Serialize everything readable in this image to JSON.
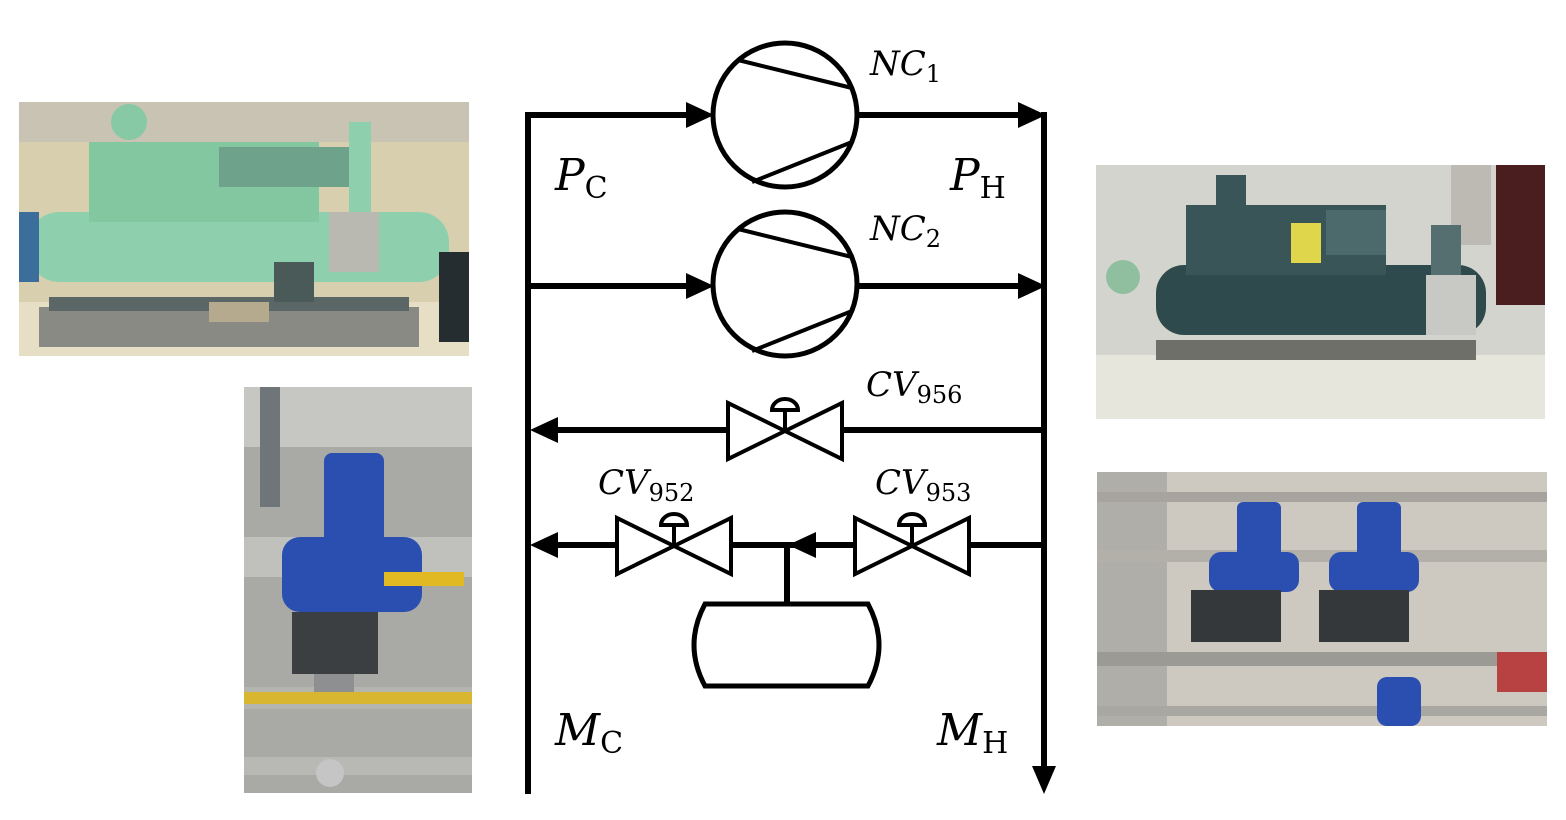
{
  "diagram": {
    "pressure_cold": {
      "main": "P",
      "sub": "C"
    },
    "pressure_hot": {
      "main": "P",
      "sub": "H"
    },
    "mass_cold": {
      "main": "M",
      "sub": "C"
    },
    "mass_hot": {
      "main": "M",
      "sub": "H"
    },
    "compressor_1": {
      "main": "NC",
      "sub": "1"
    },
    "compressor_2": {
      "main": "NC",
      "sub": "2"
    },
    "valve_956": {
      "main": "CV",
      "sub": "956"
    },
    "valve_952": {
      "main": "CV",
      "sub": "952"
    },
    "valve_953": {
      "main": "CV",
      "sub": "953"
    }
  },
  "photos": {
    "compressor_green": "photo of green screw compressor skid",
    "valve_blue_single": "photo of blue pneumatic control valve",
    "compressor_grey": "photo of grey screw compressor skid",
    "valves_blue_pair": "photo of two blue pneumatic control valves"
  },
  "colors": {
    "line": "#000000",
    "valve_blue": "#2a4fb0",
    "compressor_green": "#8fd3ae",
    "compressor_grey": "#2f4a4c"
  }
}
